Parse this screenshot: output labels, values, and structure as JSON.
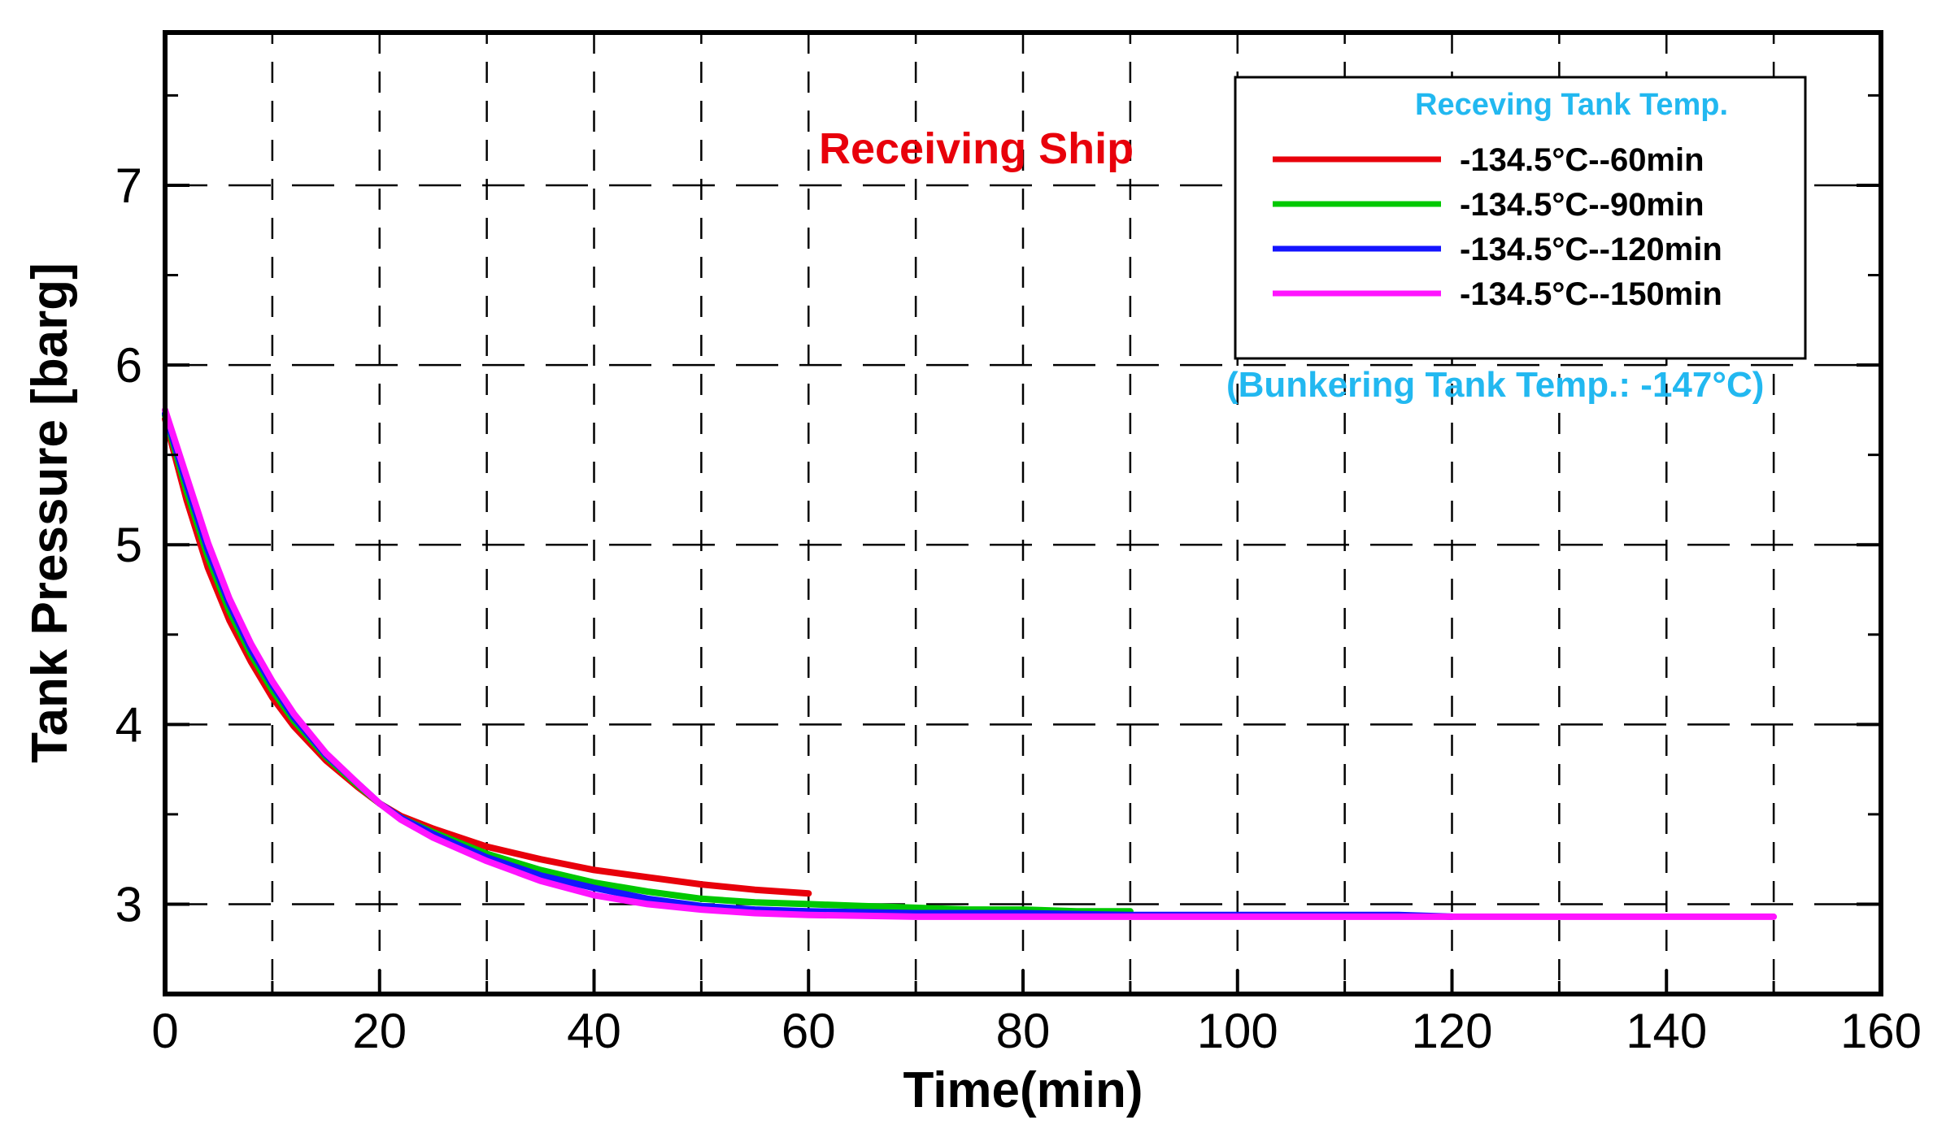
{
  "chart_data": {
    "type": "line",
    "xlabel": "Time(min)",
    "ylabel": "Tank Pressure [barg]",
    "xlim": [
      0,
      160
    ],
    "ylim": [
      2.5,
      7.85
    ],
    "xticks": [
      0,
      20,
      40,
      60,
      80,
      100,
      120,
      140,
      160
    ],
    "xtick_labels": [
      "0",
      "20",
      "40",
      "60",
      "80",
      "100",
      "120",
      "140",
      "160"
    ],
    "yticks": [
      3,
      4,
      5,
      6,
      7
    ],
    "ytick_labels": [
      "3",
      "4",
      "5",
      "6",
      "7"
    ],
    "grid": true,
    "legend_title": "Receving Tank Temp.",
    "legend_position": "top-right",
    "annotations": {
      "receiving_ship": "Receiving Ship",
      "bunkering_temp": "(Bunkering Tank Temp.: -147°C)"
    },
    "series": [
      {
        "name": "-134.5°C--60min",
        "color": "#e8000b",
        "x": [
          0,
          2,
          4,
          6,
          8,
          10,
          12,
          15,
          18,
          20,
          22,
          25,
          30,
          35,
          40,
          45,
          50,
          55,
          60
        ],
        "y": [
          5.7,
          5.25,
          4.87,
          4.58,
          4.35,
          4.15,
          3.99,
          3.8,
          3.65,
          3.56,
          3.49,
          3.42,
          3.32,
          3.25,
          3.19,
          3.15,
          3.11,
          3.08,
          3.06
        ]
      },
      {
        "name": "-134.5°C--90min",
        "color": "#00c800",
        "x": [
          0,
          2,
          4,
          6,
          8,
          10,
          12,
          15,
          18,
          20,
          22,
          25,
          30,
          35,
          40,
          45,
          50,
          55,
          60,
          65,
          70,
          75,
          80,
          85,
          90
        ],
        "y": [
          5.72,
          5.3,
          4.93,
          4.63,
          4.39,
          4.19,
          4.02,
          3.82,
          3.66,
          3.56,
          3.48,
          3.4,
          3.28,
          3.19,
          3.12,
          3.07,
          3.03,
          3.01,
          3.0,
          2.99,
          2.98,
          2.97,
          2.97,
          2.96,
          2.96
        ]
      },
      {
        "name": "-134.5°C--120min",
        "color": "#1414ff",
        "x": [
          0,
          2,
          4,
          6,
          8,
          10,
          12,
          15,
          18,
          20,
          22,
          25,
          30,
          35,
          40,
          45,
          50,
          55,
          60,
          70,
          80,
          90,
          100,
          110,
          115,
          120
        ],
        "y": [
          5.73,
          5.34,
          4.97,
          4.67,
          4.42,
          4.22,
          4.04,
          3.83,
          3.67,
          3.56,
          3.48,
          3.39,
          3.26,
          3.16,
          3.09,
          3.03,
          2.99,
          2.97,
          2.96,
          2.95,
          2.95,
          2.94,
          2.94,
          2.94,
          2.94,
          2.93
        ]
      },
      {
        "name": "-134.5°C--150min",
        "color": "#ff14ff",
        "x": [
          0,
          2,
          4,
          6,
          8,
          10,
          12,
          15,
          18,
          20,
          22,
          25,
          30,
          35,
          40,
          45,
          50,
          55,
          60,
          70,
          80,
          90,
          100,
          110,
          120,
          130,
          140,
          150
        ],
        "y": [
          5.75,
          5.38,
          5.01,
          4.7,
          4.45,
          4.24,
          4.06,
          3.84,
          3.67,
          3.56,
          3.47,
          3.37,
          3.24,
          3.13,
          3.05,
          3.0,
          2.97,
          2.95,
          2.94,
          2.93,
          2.93,
          2.93,
          2.93,
          2.93,
          2.93,
          2.93,
          2.93,
          2.93
        ]
      }
    ]
  }
}
